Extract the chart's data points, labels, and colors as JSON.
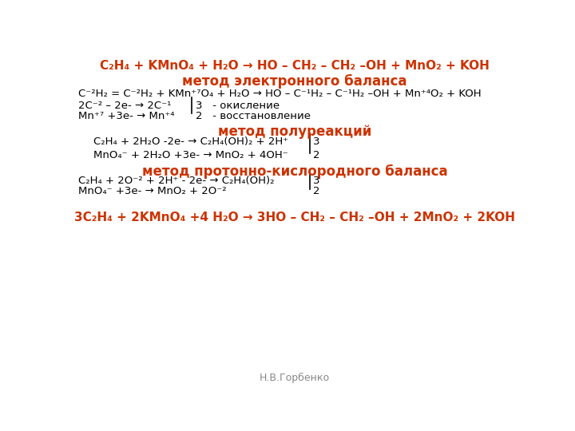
{
  "bg_color": "#ffffff",
  "orange_color": "#cc3300",
  "black_color": "#000000",
  "gray_color": "#888888",
  "title1": "C₂H₄ + KMnO₄ + H₂O → HO – CH₂ – CH₂ –OH + MnO₂ + KOH",
  "header1": "метод электронного баланса",
  "header2": "метод полуреакций",
  "header3": "метод протонно-кислородного баланса",
  "title2": "3C₂H₄ + 2KMnO₄ +4 H₂O → 3HO – CH₂ – CH₂ –OH + 2MnO₂ + 2KOH",
  "footer": "Н.В.Горбенко",
  "line_eb1": "C⁻²H₂ = C⁻²H₂ + KMn⁺⁷O₄ + H₂O → HO – C⁻¹H₂ – C⁻¹H₂ –OH + Mn⁺⁴O₂ + KOH",
  "line_eb2a": "2C⁻² – 2e- → 2C⁻¹",
  "line_eb2b": "3   - окисление",
  "line_eb3a": "Mn⁺⁷ +3e- → Mn⁺⁴",
  "line_eb3b": "2   - восстановление",
  "line_pr1a": "C₂H₄ + 2H₂O -2e- → C₂H₄(OH)₂ + 2H⁺",
  "line_pr1b": "3",
  "line_pr2a": "MnO₄⁻ + 2H₂O +3e- → MnO₂ + 4OH⁻",
  "line_pr2b": "2",
  "line_pk1a": "C₂H₄ + 2O⁻² + 2H⁺ - 2e- → C₂H₄(OH)₂",
  "line_pk1b": "3",
  "line_pk2a": "MnO₄⁻ +3e- → MnO₂ + 2O⁻²",
  "line_pk2b": "2"
}
